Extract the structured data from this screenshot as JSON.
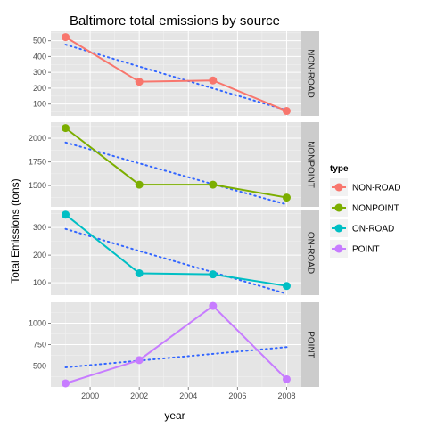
{
  "chart_data": {
    "type": "line",
    "title": "Baltimore total emissions by source",
    "xlabel": "year",
    "ylabel": "Total Emissions (tons)",
    "x": [
      1999,
      2002,
      2005,
      2008
    ],
    "xlim": [
      1998.4,
      2008.6
    ],
    "x_ticks": [
      2000,
      2002,
      2004,
      2006,
      2008
    ],
    "grid": true,
    "legend": {
      "title": "type",
      "placement": "right",
      "entries": [
        "NON-ROAD",
        "NONPOINT",
        "ON-ROAD",
        "POINT"
      ]
    },
    "trend_style": "dotted linear fit",
    "trend_color": "#3366ff",
    "panels": [
      {
        "strip": "NON-ROAD",
        "color": "#f8766d",
        "values": [
          522.9,
          240.8,
          248.9,
          55.8
        ],
        "trend": [
          475,
          337,
          199,
          61
        ],
        "ylim": [
          25,
          560
        ],
        "y_ticks": [
          100,
          200,
          300,
          400,
          500
        ]
      },
      {
        "strip": "NONPOINT",
        "color": "#7cae00",
        "values": [
          2107.6,
          1509.5,
          1509.5,
          1373.2
        ],
        "trend": [
          1955,
          1735,
          1515,
          1300
        ],
        "ylim": [
          1275,
          2170
        ],
        "y_ticks": [
          1500,
          1750,
          2000
        ]
      },
      {
        "strip": "ON-ROAD",
        "color": "#00bfc4",
        "values": [
          346.8,
          134.3,
          130.4,
          88.3
        ],
        "trend": [
          295,
          215,
          138,
          60
        ],
        "ylim": [
          55,
          362
        ],
        "y_ticks": [
          100,
          200,
          300
        ]
      },
      {
        "strip": "POINT",
        "color": "#c77cff",
        "values": [
          296.8,
          569.3,
          1202.5,
          344.98
        ],
        "trend": [
          484,
          563,
          642,
          721
        ],
        "ylim": [
          255,
          1245
        ],
        "y_ticks": [
          500,
          750,
          1000
        ]
      }
    ]
  }
}
